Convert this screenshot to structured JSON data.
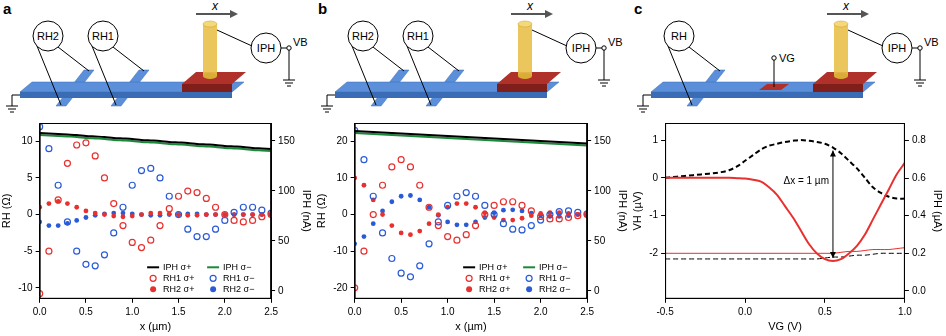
{
  "chart_data": [
    {
      "type": "scatter",
      "title": "a",
      "xlabel": "x (µm)",
      "ylabel": "RH (Ω)",
      "y2label": "IPH (nA)",
      "x": [
        0,
        0.1,
        0.2,
        0.3,
        0.4,
        0.5,
        0.6,
        0.7,
        0.8,
        0.9,
        1,
        1.1,
        1.2,
        1.3,
        1.4,
        1.5,
        1.6,
        1.7,
        1.8,
        1.9,
        2,
        2.1,
        2.2,
        2.3,
        2.4,
        2.5
      ],
      "xlim": [
        0,
        2.5
      ],
      "xticks": [
        {
          "value": 0,
          "label": "0.0"
        },
        0.5,
        {
          "value": 1,
          "label": "1.0"
        },
        1.5,
        {
          "value": 2,
          "label": "2.0"
        },
        2.5
      ],
      "ylim": [
        -11.5,
        12.5
      ],
      "yticks": [
        -10,
        -5,
        0,
        5,
        10
      ],
      "y2lim": [
        -8,
        168
      ],
      "y2ticks": [
        0,
        50,
        100,
        150
      ],
      "grid": false,
      "legend": "lower right",
      "series": [
        {
          "name": "IPH σ+",
          "type": "line",
          "line_style": "solid",
          "color": "#000000",
          "axis": "y2",
          "values": [
            158,
            157.5,
            157,
            156.5,
            156,
            155,
            154.5,
            154,
            153,
            152.5,
            152,
            151,
            150.5,
            150,
            149,
            148.5,
            148,
            147,
            146.5,
            146,
            145,
            144.5,
            144,
            143,
            142.5,
            142
          ]
        },
        {
          "name": "IPH σ−",
          "type": "line",
          "line_style": "solid",
          "color": "#1a8a3a",
          "axis": "y2",
          "values": [
            156,
            155.5,
            155,
            154.5,
            154,
            153,
            152.5,
            152,
            151,
            150.5,
            150,
            149,
            148.5,
            148,
            147,
            146.5,
            146,
            145,
            144.5,
            144,
            143,
            142.5,
            142,
            141,
            140.5,
            140
          ]
        },
        {
          "name": "RH1 σ+",
          "type": "scatter",
          "marker": "open_circle",
          "color": "#e8312f",
          "values": [
            -10.8,
            -5,
            2,
            7,
            9.5,
            9.8,
            8,
            5,
            1.5,
            -1.5,
            -3.8,
            -4.5,
            -3.5,
            -1.5,
            0.8,
            2.5,
            3.2,
            3,
            2.2,
            1,
            0,
            -0.8,
            -1,
            -0.8,
            -0.3,
            0
          ]
        },
        {
          "name": "RH1 σ−",
          "type": "scatter",
          "marker": "open_circle",
          "color": "#2a5bd7",
          "values": [
            12,
            9,
            4,
            -1,
            -5,
            -6.8,
            -7,
            -5.5,
            -2.5,
            1,
            4,
            6,
            6.3,
            5,
            2.5,
            0,
            -2,
            -3,
            -3,
            -2,
            -0.8,
            0.3,
            1,
            1,
            0.6,
            0.2
          ]
        },
        {
          "name": "RH2 σ+",
          "type": "scatter",
          "marker": "circle",
          "color": "#e8312f",
          "values": [
            1,
            1.5,
            1.8,
            1.5,
            1,
            0.5,
            0.2,
            0,
            -0.2,
            -0.3,
            -0.2,
            0,
            0.2,
            0.2,
            0.1,
            0,
            -0.1,
            -0.1,
            0,
            0,
            0,
            0,
            0,
            0,
            0,
            0
          ]
        },
        {
          "name": "RH2 σ−",
          "type": "scatter",
          "marker": "circle",
          "color": "#2a5bd7",
          "values": [
            -1,
            -1.5,
            -1.5,
            -1.2,
            -0.8,
            -0.4,
            -0.1,
            0.1,
            0.2,
            0.2,
            0.1,
            0,
            -0.1,
            -0.1,
            0,
            0,
            0.1,
            0.1,
            0,
            0,
            0,
            0,
            0,
            0,
            0,
            0
          ]
        }
      ]
    },
    {
      "type": "scatter",
      "title": "b",
      "xlabel": "x (µm)",
      "ylabel": "RH (Ω)",
      "y2label": "IPH (nA)",
      "x": [
        0,
        0.1,
        0.2,
        0.3,
        0.4,
        0.5,
        0.6,
        0.7,
        0.8,
        0.9,
        1,
        1.1,
        1.2,
        1.3,
        1.4,
        1.5,
        1.6,
        1.7,
        1.8,
        1.9,
        2,
        2.1,
        2.2,
        2.3,
        2.4,
        2.5
      ],
      "xlim": [
        0,
        2.5
      ],
      "xticks": [
        {
          "value": 0,
          "label": "0.0"
        },
        0.5,
        {
          "value": 1,
          "label": "1.0"
        },
        1.5,
        {
          "value": 2,
          "label": "2.0"
        },
        2.5
      ],
      "ylim": [
        -23,
        25
      ],
      "yticks": [
        -20,
        -10,
        0,
        10,
        20
      ],
      "y2lim": [
        -8,
        168
      ],
      "y2ticks": [
        0,
        50,
        100,
        150
      ],
      "grid": false,
      "legend": "lower right",
      "series": [
        {
          "name": "IPH σ+",
          "type": "line",
          "line_style": "solid",
          "color": "#000000",
          "axis": "y2",
          "values": [
            160,
            159.5,
            159,
            158.5,
            158,
            157.5,
            157,
            156.5,
            156,
            155.5,
            155,
            154.5,
            154,
            153.5,
            153,
            152.5,
            152,
            151.5,
            151,
            150.5,
            150,
            149.5,
            149,
            148.5,
            148,
            147.5
          ]
        },
        {
          "name": "IPH σ−",
          "type": "line",
          "line_style": "solid",
          "color": "#1a8a3a",
          "axis": "y2",
          "values": [
            158,
            157.5,
            157,
            156.5,
            156,
            155.5,
            155,
            154.5,
            154,
            153.5,
            153,
            152.5,
            152,
            151.5,
            151,
            150.5,
            150,
            149.5,
            149,
            148.5,
            148,
            147.5,
            147,
            146.5,
            146,
            145.5
          ]
        },
        {
          "name": "RH1 σ+",
          "type": "scatter",
          "marker": "open_circle",
          "color": "#e8312f",
          "values": [
            -20,
            -10,
            0,
            8,
            13,
            15,
            13,
            8,
            2,
            -3,
            -6,
            -7,
            -5.5,
            -3,
            0,
            2.5,
            3.5,
            3.5,
            2.5,
            1,
            -0.5,
            -1.2,
            -1.2,
            -0.8,
            -0.3,
            0
          ]
        },
        {
          "name": "RH1 σ−",
          "type": "scatter",
          "marker": "open_circle",
          "color": "#2a5bd7",
          "values": [
            23,
            15,
            5,
            -5,
            -12,
            -16,
            -17,
            -14,
            -8,
            -2,
            2.5,
            5,
            6,
            5,
            2.5,
            0,
            -2.5,
            -4,
            -4.2,
            -3,
            -1.5,
            0,
            0.8,
            1,
            0.6,
            0.2
          ]
        },
        {
          "name": "RH2 σ+",
          "type": "scatter",
          "marker": "circle",
          "color": "#e8312f",
          "values": [
            10,
            8,
            4,
            0,
            -3,
            -5,
            -5.5,
            -4.5,
            -2.5,
            0,
            2,
            3,
            3,
            2,
            0.5,
            -0.8,
            -1.5,
            -1.5,
            -1,
            -0.3,
            0.3,
            0.5,
            0.5,
            0.3,
            0,
            0
          ]
        },
        {
          "name": "RH2 σ−",
          "type": "scatter",
          "marker": "circle",
          "color": "#2a5bd7",
          "values": [
            -8,
            -6,
            -2.5,
            1,
            3.5,
            5,
            5.2,
            4,
            2,
            -0.2,
            -2,
            -2.8,
            -2.8,
            -2,
            -0.8,
            0.5,
            1.2,
            1.3,
            1,
            0.4,
            -0.2,
            -0.5,
            -0.5,
            -0.3,
            0,
            0
          ]
        }
      ]
    },
    {
      "type": "line",
      "title": "c",
      "xlabel": "VG (V)",
      "ylabel": "VH (µV)",
      "y2label": "IPH (µA)",
      "annotations": [
        "Δx = 1 µm"
      ],
      "x": [
        -0.5,
        -0.45,
        -0.4,
        -0.35,
        -0.3,
        -0.25,
        -0.2,
        -0.15,
        -0.1,
        -0.05,
        0,
        0.05,
        0.1,
        0.15,
        0.2,
        0.25,
        0.3,
        0.35,
        0.4,
        0.45,
        0.5,
        0.55,
        0.6,
        0.65,
        0.7,
        0.75,
        0.8,
        0.85,
        0.9,
        0.95,
        1
      ],
      "xlim": [
        -0.5,
        1
      ],
      "xticks": [
        -0.5,
        {
          "value": 0,
          "label": "0.0"
        },
        0.5,
        {
          "value": 1,
          "label": "1.0"
        }
      ],
      "ylim": [
        -3.2,
        1.45
      ],
      "yticks": [
        -2,
        -1,
        0,
        1
      ],
      "y2lim": [
        -0.042,
        0.893
      ],
      "y2ticks": [
        {
          "value": 0,
          "label": "0.0"
        },
        0.2,
        0.4,
        0.6,
        0.8
      ],
      "grid": false,
      "series": [
        {
          "type": "line",
          "line_style": "solid",
          "color": "#e8312f",
          "values": [
            0,
            0,
            0,
            0,
            0,
            0,
            0,
            0,
            0,
            -0.01,
            -0.02,
            -0.05,
            -0.1,
            -0.25,
            -0.45,
            -0.75,
            -1.05,
            -1.4,
            -1.75,
            -2,
            -2.15,
            -2.2,
            -2.15,
            -2,
            -1.8,
            -1.5,
            -1.1,
            -0.7,
            -0.3,
            0.1,
            0.4
          ]
        },
        {
          "type": "line",
          "line_style": "dashed",
          "color": "#000000",
          "values": [
            0,
            0.02,
            0.04,
            0.06,
            0.08,
            0.1,
            0.12,
            0.15,
            0.2,
            0.3,
            0.45,
            0.6,
            0.75,
            0.85,
            0.9,
            0.95,
            0.98,
            1,
            0.98,
            0.95,
            0.9,
            0.8,
            0.65,
            0.45,
            0.25,
            0,
            -0.25,
            -0.4,
            -0.5,
            -0.55,
            -0.55
          ]
        },
        {
          "type": "line",
          "line_style": "solid",
          "color": "#e8312f",
          "axis": "y2",
          "values": [
            0.2,
            0.2,
            0.2,
            0.2,
            0.2,
            0.2,
            0.2,
            0.2,
            0.2,
            0.2,
            0.2,
            0.2,
            0.2,
            0.2,
            0.2,
            0.2,
            0.2,
            0.2,
            0.2,
            0.2,
            0.2,
            0.2,
            0.205,
            0.21,
            0.21,
            0.215,
            0.22,
            0.22,
            0.22,
            0.225,
            0.23
          ]
        },
        {
          "type": "line",
          "line_style": "dashed",
          "color": "#000000",
          "axis": "y2",
          "values": [
            0.17,
            0.17,
            0.17,
            0.17,
            0.17,
            0.17,
            0.17,
            0.17,
            0.17,
            0.17,
            0.17,
            0.17,
            0.17,
            0.17,
            0.17,
            0.17,
            0.17,
            0.17,
            0.17,
            0.17,
            0.175,
            0.18,
            0.18,
            0.185,
            0.19,
            0.19,
            0.195,
            0.2,
            0.2,
            0.2,
            0.2
          ]
        }
      ]
    }
  ],
  "schematics": [
    {
      "meters": [
        "RH2",
        "RH1"
      ],
      "current": "IPH",
      "bias": "VB",
      "position": "x"
    },
    {
      "meters": [
        "RH2",
        "RH1"
      ],
      "current": "IPH",
      "bias": "VB",
      "position": "x"
    },
    {
      "meters": [
        "RH"
      ],
      "gate": "VG",
      "current": "IPH",
      "bias": "VB",
      "position": "x"
    }
  ]
}
